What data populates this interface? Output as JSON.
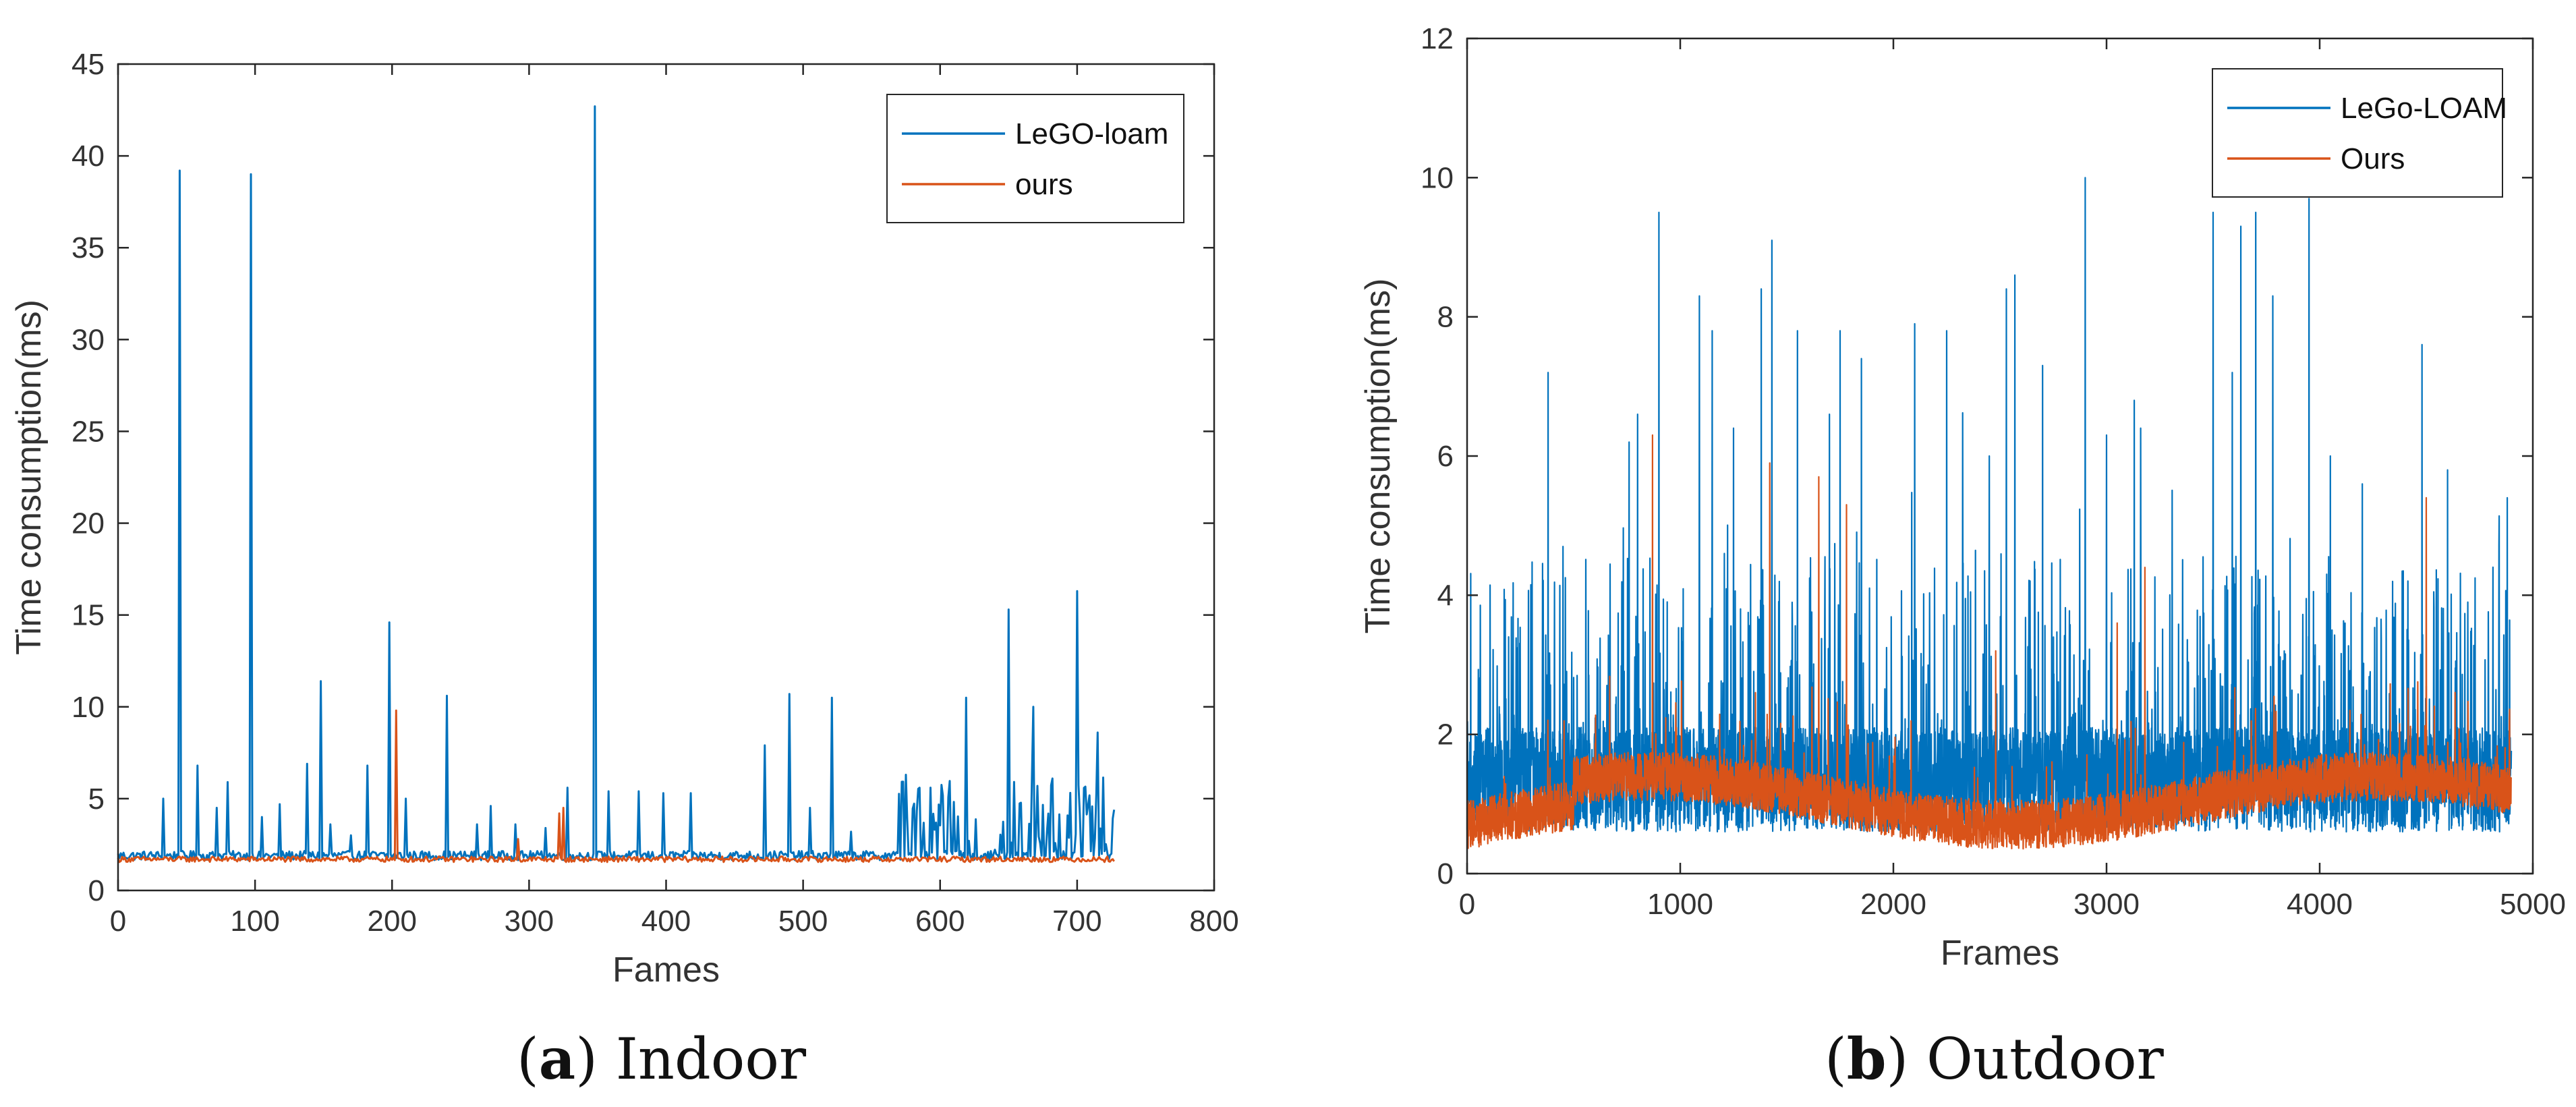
{
  "colors": {
    "series1": "#0072BD",
    "series2": "#D95319",
    "axis": "#262626",
    "text": "#333333"
  },
  "captions": {
    "a": {
      "letter": "a",
      "text": "Indoor"
    },
    "b": {
      "letter": "b",
      "text": "Outdoor"
    }
  },
  "chart_data": [
    {
      "id": "a",
      "type": "line",
      "title": "",
      "xlabel": "Fames",
      "ylabel": "Time consumption(ms)",
      "xlim": [
        0,
        800
      ],
      "ylim": [
        0,
        45
      ],
      "xticks": [
        0,
        100,
        200,
        300,
        400,
        500,
        600,
        700,
        800
      ],
      "yticks": [
        0,
        5,
        10,
        15,
        20,
        25,
        30,
        35,
        40,
        45
      ],
      "legend_position": "top-right",
      "frames": 728,
      "series": [
        {
          "name": "LeGO-loam",
          "color": "#0072BD",
          "baseline": 1.9,
          "noise": 0.25,
          "spikes": [
            [
              33,
              5.0
            ],
            [
              45,
              39.2
            ],
            [
              58,
              6.8
            ],
            [
              72,
              4.5
            ],
            [
              80,
              5.9
            ],
            [
              97,
              39.0
            ],
            [
              105,
              4.0
            ],
            [
              118,
              4.7
            ],
            [
              138,
              6.9
            ],
            [
              148,
              11.4
            ],
            [
              155,
              3.6
            ],
            [
              170,
              3.0
            ],
            [
              182,
              6.8
            ],
            [
              198,
              14.6
            ],
            [
              210,
              5.0
            ],
            [
              240,
              10.6
            ],
            [
              262,
              3.6
            ],
            [
              272,
              4.6
            ],
            [
              290,
              3.6
            ],
            [
              312,
              3.4
            ],
            [
              328,
              5.6
            ],
            [
              348,
              42.7
            ],
            [
              358,
              5.4
            ],
            [
              380,
              5.4
            ],
            [
              398,
              5.3
            ],
            [
              418,
              5.3
            ],
            [
              472,
              7.9
            ],
            [
              490,
              10.7
            ],
            [
              505,
              4.5
            ],
            [
              521,
              10.5
            ],
            [
              535,
              3.2
            ],
            [
              575,
              6.3
            ],
            [
              593,
              5.6
            ],
            [
              619,
              10.5
            ],
            [
              650,
              15.3
            ],
            [
              668,
              10.0
            ],
            [
              700,
              16.3
            ],
            [
              715,
              8.6
            ]
          ],
          "dense_range": [
            570,
            728
          ],
          "dense_level": [
            2.2,
            6.2
          ]
        },
        {
          "name": "ours",
          "color": "#D95319",
          "baseline": 1.7,
          "noise": 0.15,
          "spikes": [
            [
              203,
              9.8
            ],
            [
              325,
              4.5
            ],
            [
              322,
              4.2
            ],
            [
              292,
              2.8
            ]
          ],
          "dense_range": null,
          "dense_level": null
        }
      ]
    },
    {
      "id": "b",
      "type": "line",
      "title": "",
      "xlabel": "Frames",
      "ylabel": "Time consumption(ms)",
      "xlim": [
        0,
        5000
      ],
      "ylim": [
        0,
        12
      ],
      "xticks": [
        0,
        1000,
        2000,
        3000,
        4000,
        5000
      ],
      "yticks": [
        0,
        2,
        4,
        6,
        8,
        10,
        12
      ],
      "legend_position": "top-right",
      "frames": 4900,
      "series": [
        {
          "name": "LeGo-LOAM",
          "color": "#0072BD",
          "baseline": 1.1,
          "noise": 0.5,
          "spikes": [
            [
              380,
              7.2
            ],
            [
              450,
              4.7
            ],
            [
              760,
              6.2
            ],
            [
              800,
              6.6
            ],
            [
              900,
              9.5
            ],
            [
              1090,
              8.3
            ],
            [
              1150,
              7.8
            ],
            [
              1250,
              6.4
            ],
            [
              1380,
              8.4
            ],
            [
              1430,
              9.1
            ],
            [
              1550,
              7.8
            ],
            [
              1700,
              6.6
            ],
            [
              1750,
              7.8
            ],
            [
              1850,
              7.4
            ],
            [
              2100,
              7.9
            ],
            [
              2250,
              7.8
            ],
            [
              2450,
              6.0
            ],
            [
              2530,
              8.4
            ],
            [
              2570,
              8.6
            ],
            [
              2700,
              7.3
            ],
            [
              2900,
              10.0
            ],
            [
              3000,
              6.3
            ],
            [
              3130,
              6.8
            ],
            [
              3160,
              6.4
            ],
            [
              3500,
              9.5
            ],
            [
              3590,
              7.2
            ],
            [
              3630,
              9.3
            ],
            [
              3700,
              9.5
            ],
            [
              3780,
              8.3
            ],
            [
              3950,
              9.7
            ],
            [
              4050,
              6.0
            ],
            [
              4200,
              5.6
            ],
            [
              4480,
              7.6
            ],
            [
              4600,
              5.8
            ],
            [
              4880,
              5.4
            ]
          ],
          "dense_range": [
            0,
            4900
          ],
          "dense_level": [
            0.6,
            2.1
          ]
        },
        {
          "name": "Ours",
          "color": "#D95319",
          "baseline": 1.1,
          "noise": 0.3,
          "spikes": [
            [
              870,
              6.3
            ],
            [
              1420,
              5.9
            ],
            [
              1650,
              5.7
            ],
            [
              1780,
              5.3
            ],
            [
              3180,
              4.4
            ],
            [
              4500,
              5.4
            ],
            [
              2480,
              3.2
            ],
            [
              3050,
              3.6
            ]
          ],
          "dense_range": null,
          "dense_level": null
        }
      ]
    }
  ]
}
